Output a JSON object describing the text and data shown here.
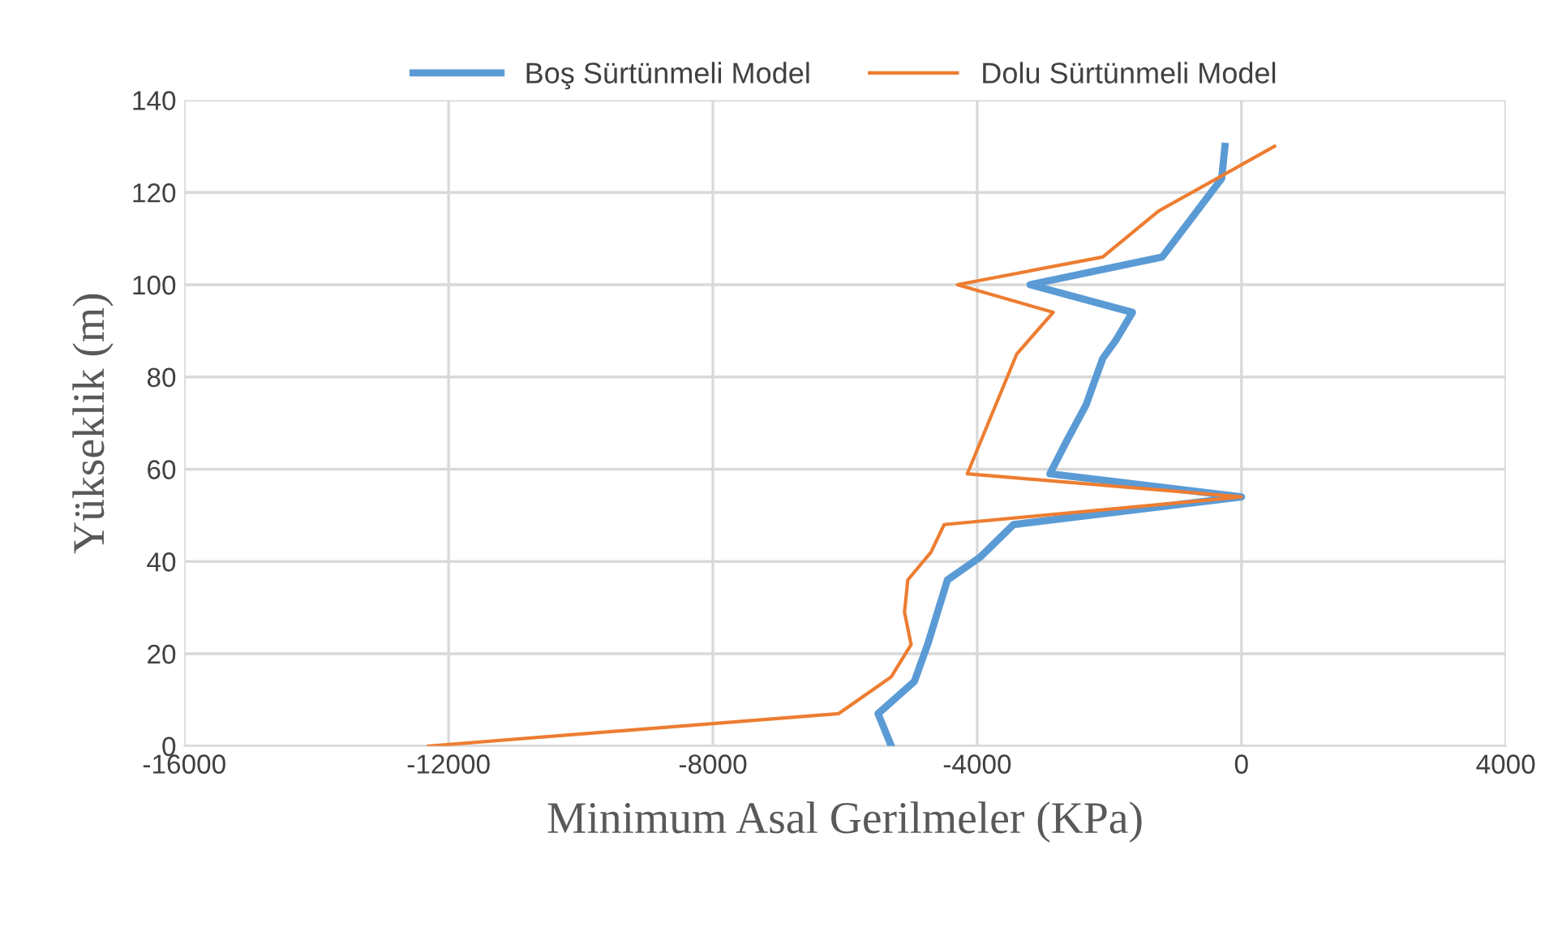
{
  "chart_data": {
    "type": "line",
    "xlabel": "Minimum Asal Gerilmeler (KPa)",
    "ylabel": "Yükseklik (m)",
    "xlim": [
      -16000,
      4000
    ],
    "xticks": [
      -16000,
      -12000,
      -8000,
      -4000,
      0,
      4000
    ],
    "ylim": [
      0,
      140
    ],
    "yticks": [
      0,
      20,
      40,
      60,
      80,
      100,
      120,
      140
    ],
    "grid": true,
    "legend": "top",
    "marker": "none",
    "line_style": "solid",
    "series": [
      {
        "name": "Boş Sürtünmeli Model",
        "color": "#5b9bd5",
        "x": [
          -5300,
          -5500,
          -4950,
          -4750,
          -4450,
          -3950,
          -3450,
          0,
          -2900,
          -2650,
          -2350,
          -2100,
          -1900,
          -1650,
          -3200,
          -1200,
          -300,
          -250
        ],
        "values": [
          0,
          7,
          14,
          22,
          36,
          41,
          48,
          54,
          59,
          66,
          74,
          84,
          88,
          94,
          100,
          106,
          123,
          130
        ]
      },
      {
        "name": "Dolu Sürtünmeli Model",
        "color": "#ed7d31",
        "x": [
          -12300,
          -6100,
          -5300,
          -5000,
          -5100,
          -5050,
          -4700,
          -4500,
          0,
          -4150,
          -3400,
          -2850,
          -4300,
          -2100,
          -1250,
          500
        ],
        "values": [
          0,
          7,
          15,
          22,
          29,
          36,
          42,
          48,
          54,
          59,
          85,
          94,
          100,
          106,
          116,
          130
        ]
      }
    ]
  }
}
